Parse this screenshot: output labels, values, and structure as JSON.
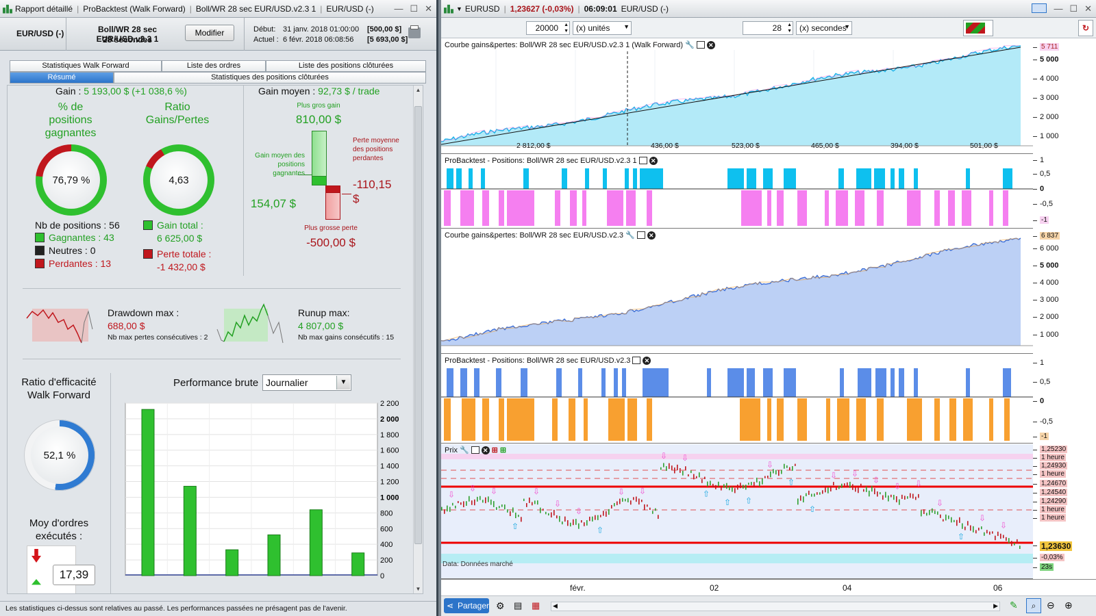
{
  "left": {
    "title": "Rapport détaillé",
    "system": "ProBacktest (Walk Forward)",
    "strategy_title": "Boll/WR 28 sec EUR/USD.v2.3 1",
    "instrument_title": "EUR/USD (-)",
    "instrument": "EUR/USD (-)",
    "strategy": "Boll/WR 28 sec EUR/USD.v2.3 1",
    "timeframe": "28 secondes",
    "modify": "Modifier",
    "start_label": "Début:",
    "start_date": "31 janv. 2018 01:00:00",
    "start_value": "[500,00 $]",
    "current_label": "Actuel :",
    "current_date": "6 févr. 2018 06:08:56",
    "current_value": "[5 693,00 $]",
    "tabs_top": [
      "Statistiques Walk Forward",
      "Liste des ordres",
      "Liste des positions clôturées"
    ],
    "tabs_bottom": [
      "Résumé",
      "Statistiques des positions clôturées"
    ],
    "gain_label": "Gain :",
    "gain_value": "5 193,00 $ (+1 038,6 %)",
    "pct_title": "% de positions gagnantes",
    "pct_value": "76,79 %",
    "pct": 0.7679,
    "ratio_title": "Ratio Gains/Pertes",
    "ratio_value": "4,63",
    "nb_positions": "Nb de positions : 56",
    "gagnantes": "Gagnantes : 43",
    "neutres": "Neutres : 0",
    "perdantes": "Perdantes : 13",
    "gain_total_label": "Gain total :",
    "gain_total": "6 625,00 $",
    "perte_totale_label": "Perte totale :",
    "perte_totale": "-1 432,00 $",
    "gain_moyen_label": "Gain moyen :",
    "gain_moyen": "92,73 $ / trade",
    "plus_gros_gain_label": "Plus gros gain",
    "plus_gros_gain": "810,00 $",
    "gain_moyen_pos_label": "Gain moyen des positions gagnantes",
    "gain_moyen_pos": "154,07 $",
    "perte_moyenne_label": "Perte moyenne des positions perdantes",
    "perte_moyenne": "-110,15 $",
    "plus_grosse_perte_label": "Plus grosse perte",
    "plus_grosse_perte": "-500,00 $",
    "drawdown_label": "Drawdown max :",
    "drawdown": "688,00 $",
    "pertes_consec": "Nb max pertes consécutives : 2",
    "runup_label": "Runup max:",
    "runup": "4 807,00 $",
    "gains_consec": "Nb max gains consécutifs : 15",
    "wf_title": "Ratio d'efficacité Walk Forward",
    "wf_value": "52,1 %",
    "wf": 0.521,
    "moy_ordres_label": "Moy d'ordres exécutés :",
    "moy_ordres": "17,39",
    "perf_label": "Performance brute",
    "perf_select": "Journalier",
    "perf_chart": {
      "type": "bar",
      "values": [
        2120,
        1140,
        330,
        520,
        840,
        290
      ],
      "ylim": [
        0,
        2200
      ],
      "ticks": [
        "2 200",
        "2 000",
        "1 800",
        "1 600",
        "1 400",
        "1 200",
        "1 000",
        "800",
        "600",
        "400",
        "200",
        "0"
      ]
    },
    "footer": "Les statistiques ci-dessus sont relatives au passé. Les performances passées ne présagent pas de l'avenir."
  },
  "right": {
    "symbol": "EURUSD",
    "price": "1,23627 (-0,03%)",
    "time": "06:09:01",
    "instrument": "EUR/USD (-)",
    "qty": "20000",
    "qty_unit": "(x) unités",
    "tf": "28",
    "tf_unit": "(x) secondes",
    "p1_title": "Courbe gains&pertes: Boll/WR 28 sec EUR/USD.v2.3 1 (Walk Forward)",
    "p1_axis": [
      "5 000",
      "4 000",
      "3 000",
      "2 000",
      "1 000"
    ],
    "p1_tag": "5 711",
    "p1_labels": [
      "2 812,00 $",
      "436,00 $",
      "523,00 $",
      "465,00 $",
      "394,00 $",
      "501,00 $"
    ],
    "p2_title": "ProBacktest - Positions: Boll/WR 28 sec EUR/USD.v2.3 1",
    "pos_axis": [
      "1",
      "0,5",
      "0",
      "-0,5"
    ],
    "pos_tag": "-1",
    "p3_title": "Courbe gains&pertes: Boll/WR 28 sec EUR/USD.v2.3",
    "p3_axis": [
      "6 000",
      "5 000",
      "4 000",
      "3 000",
      "2 000",
      "1 000"
    ],
    "p3_tag": "6 837",
    "p4_title": "ProBacktest - Positions: Boll/WR 28 sec EUR/USD.v2.3",
    "p5_title": "Prix",
    "p5_axis": [
      "1,25230",
      "1 heure",
      "1,24930",
      "1 heure",
      "1,24670",
      "1,24540",
      "1,24290",
      "1 heure",
      "1 heure"
    ],
    "p5_price_tag": "1,23630",
    "p5_pct": "-0,03%",
    "p5_time": "23s",
    "p5_source": "Data: Données marché",
    "x_labels": [
      "févr.",
      "02",
      "04",
      "06"
    ],
    "share": "Partager"
  }
}
